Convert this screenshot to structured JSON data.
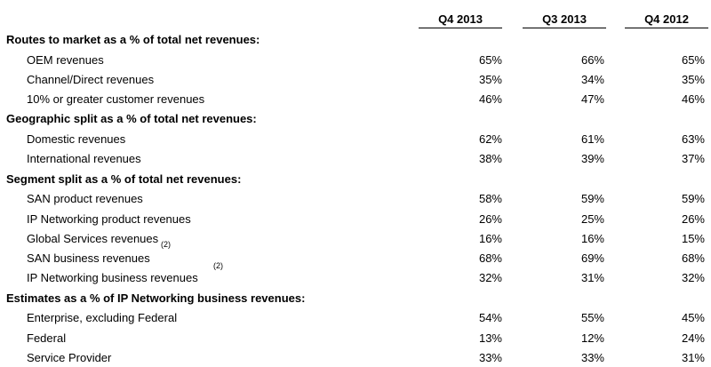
{
  "headers": [
    "Q4 2013",
    "Q3 2013",
    "Q4 2012"
  ],
  "sections": [
    {
      "title": "Routes to market as a % of total net revenues:",
      "rows": [
        {
          "label": "OEM revenues",
          "values": [
            "65%",
            "66%",
            "65%"
          ]
        },
        {
          "label": "Channel/Direct revenues",
          "values": [
            "35%",
            "34%",
            "35%"
          ]
        },
        {
          "label": "10% or greater customer revenues",
          "values": [
            "46%",
            "47%",
            "46%"
          ]
        }
      ]
    },
    {
      "title": "Geographic split as a % of total net revenues:",
      "rows": [
        {
          "label": "Domestic revenues",
          "values": [
            "62%",
            "61%",
            "63%"
          ]
        },
        {
          "label": "International revenues",
          "values": [
            "38%",
            "39%",
            "37%"
          ]
        }
      ]
    },
    {
      "title": "Segment split as a % of total net revenues:",
      "rows": [
        {
          "label": "SAN product revenues",
          "values": [
            "58%",
            "59%",
            "59%"
          ]
        },
        {
          "label": "IP Networking product revenues",
          "values": [
            "26%",
            "25%",
            "26%"
          ]
        },
        {
          "label": "Global Services revenues",
          "values": [
            "16%",
            "16%",
            "15%"
          ]
        },
        {
          "label": "SAN business revenues",
          "values": [
            "68%",
            "69%",
            "68%"
          ]
        },
        {
          "label": "IP Networking business revenues",
          "values": [
            "32%",
            "31%",
            "32%"
          ]
        }
      ]
    },
    {
      "title": "Estimates as a % of IP Networking business revenues:",
      "rows": [
        {
          "label": "Enterprise, excluding Federal",
          "values": [
            "54%",
            "55%",
            "45%"
          ]
        },
        {
          "label": "Federal",
          "values": [
            "13%",
            "12%",
            "24%"
          ]
        },
        {
          "label": "Service Provider",
          "values": [
            "33%",
            "33%",
            "31%"
          ]
        }
      ]
    }
  ],
  "footnotes": [
    "(2)",
    "(2)"
  ]
}
